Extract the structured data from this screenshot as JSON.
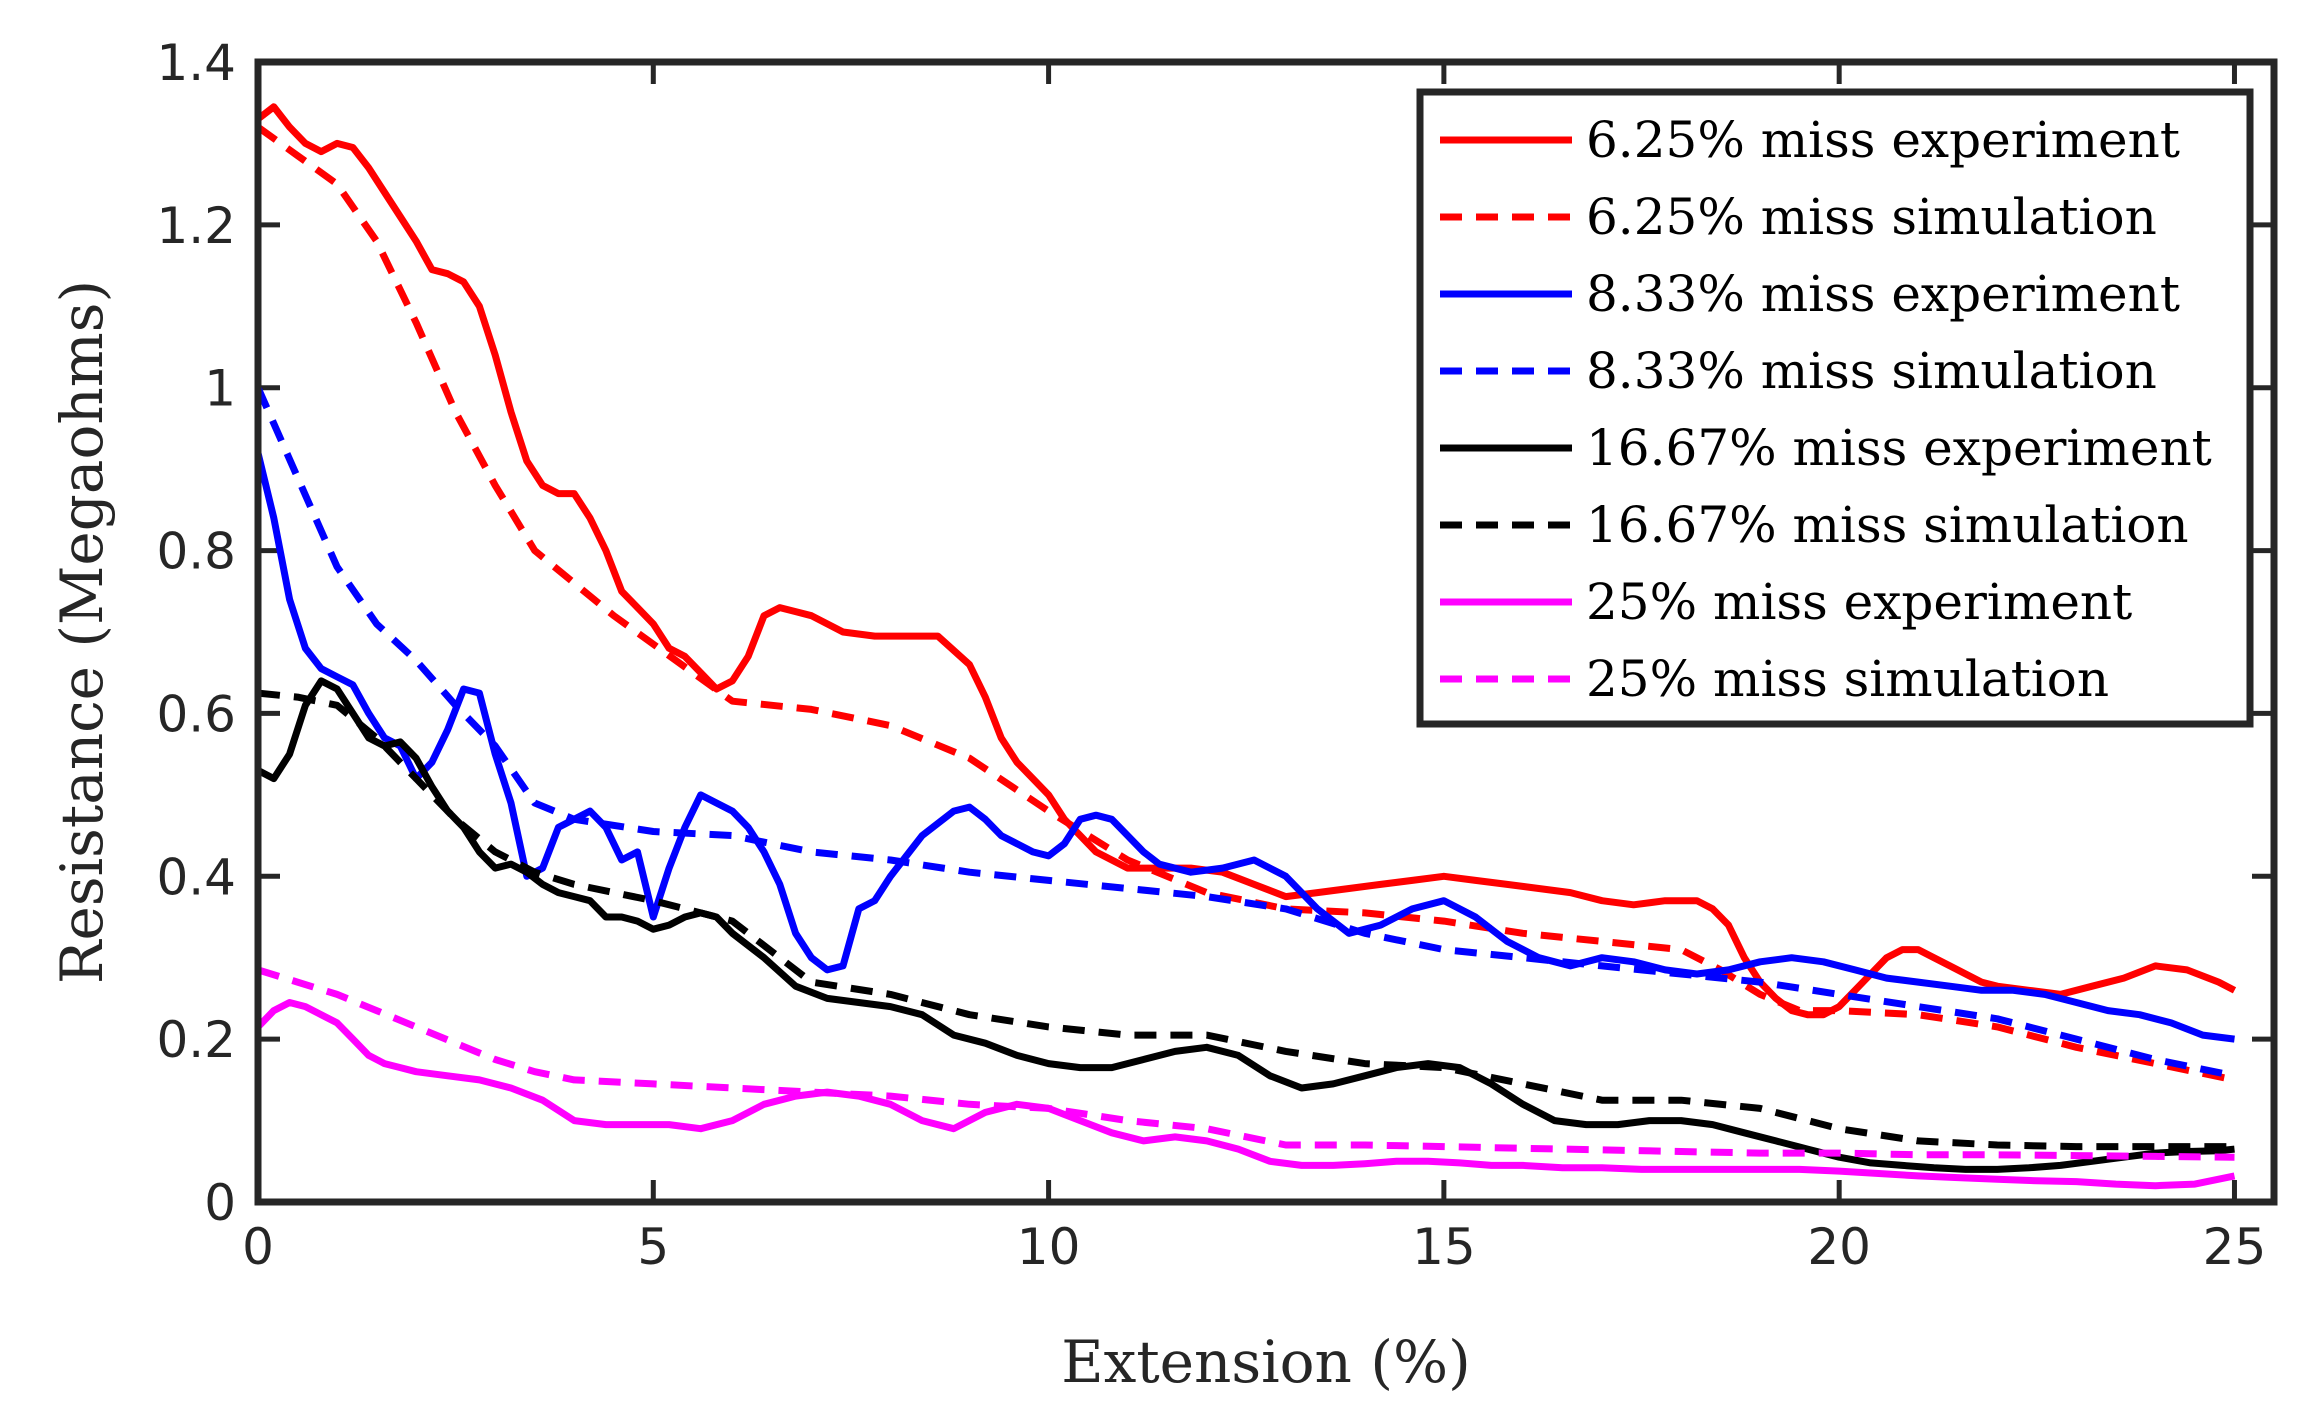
{
  "chart_data": {
    "type": "line",
    "title": "",
    "xlabel": "Extension (%)",
    "ylabel": "Resistance (Megaohms)",
    "xlim": [
      0,
      25.5
    ],
    "ylim": [
      0,
      1.4
    ],
    "xticks": [
      0,
      5,
      10,
      15,
      20,
      25
    ],
    "xtick_labels": [
      "0",
      "5",
      "10",
      "15",
      "20",
      "25"
    ],
    "yticks": [
      0,
      0.2,
      0.4,
      0.6,
      0.8,
      1.0,
      1.2,
      1.4
    ],
    "ytick_labels": [
      "0",
      "0.2",
      "0.4",
      "0.6",
      "0.8",
      "1",
      "1.2",
      "1.4"
    ],
    "grid": false,
    "legend_position": "top-right",
    "series": [
      {
        "name": "6.25% miss experiment",
        "color": "#ff0000",
        "style": "solid",
        "x": [
          0,
          0.2,
          0.4,
          0.6,
          0.8,
          1.0,
          1.2,
          1.4,
          1.6,
          1.8,
          2.0,
          2.2,
          2.4,
          2.6,
          2.8,
          3.0,
          3.2,
          3.4,
          3.6,
          3.8,
          4.0,
          4.2,
          4.4,
          4.6,
          4.8,
          5.0,
          5.2,
          5.4,
          5.6,
          5.8,
          6.0,
          6.2,
          6.4,
          6.6,
          6.8,
          7.0,
          7.4,
          7.8,
          8.2,
          8.6,
          9.0,
          9.2,
          9.4,
          9.6,
          9.8,
          10.0,
          10.2,
          10.4,
          10.6,
          10.8,
          11.0,
          11.4,
          11.8,
          12.2,
          12.6,
          13.0,
          13.4,
          13.8,
          14.2,
          14.6,
          15.0,
          15.4,
          15.8,
          16.2,
          16.6,
          17.0,
          17.4,
          17.8,
          18.2,
          18.4,
          18.6,
          18.8,
          19.0,
          19.2,
          19.4,
          19.6,
          19.8,
          20.0,
          20.2,
          20.4,
          20.6,
          20.8,
          21.0,
          21.2,
          21.4,
          21.6,
          21.8,
          22.0,
          22.4,
          22.8,
          23.2,
          23.6,
          24.0,
          24.4,
          24.8,
          25.0
        ],
        "y": [
          1.33,
          1.345,
          1.32,
          1.3,
          1.29,
          1.3,
          1.295,
          1.27,
          1.24,
          1.21,
          1.18,
          1.145,
          1.14,
          1.13,
          1.1,
          1.04,
          0.97,
          0.91,
          0.88,
          0.87,
          0.87,
          0.84,
          0.8,
          0.75,
          0.73,
          0.71,
          0.68,
          0.67,
          0.65,
          0.63,
          0.64,
          0.67,
          0.72,
          0.73,
          0.725,
          0.72,
          0.7,
          0.695,
          0.695,
          0.695,
          0.66,
          0.62,
          0.57,
          0.54,
          0.52,
          0.5,
          0.47,
          0.45,
          0.43,
          0.42,
          0.41,
          0.41,
          0.41,
          0.405,
          0.39,
          0.375,
          0.38,
          0.385,
          0.39,
          0.395,
          0.4,
          0.395,
          0.39,
          0.385,
          0.38,
          0.37,
          0.365,
          0.37,
          0.37,
          0.36,
          0.34,
          0.3,
          0.27,
          0.25,
          0.235,
          0.23,
          0.23,
          0.24,
          0.26,
          0.28,
          0.3,
          0.31,
          0.31,
          0.3,
          0.29,
          0.28,
          0.27,
          0.265,
          0.26,
          0.255,
          0.265,
          0.275,
          0.29,
          0.285,
          0.27,
          0.26
        ]
      },
      {
        "name": "6.25% miss simulation",
        "color": "#ff0000",
        "style": "dashed",
        "x": [
          0,
          0.5,
          1.0,
          1.5,
          2.0,
          2.5,
          3.0,
          3.5,
          4.0,
          4.5,
          5.0,
          5.5,
          6.0,
          7.0,
          8.0,
          9.0,
          10.0,
          11.0,
          12.0,
          13.0,
          14.0,
          15.0,
          16.0,
          17.0,
          18.0,
          18.5,
          19.0,
          19.5,
          20.0,
          21.0,
          22.0,
          23.0,
          24.0,
          25.0
        ],
        "y": [
          1.32,
          1.285,
          1.25,
          1.18,
          1.08,
          0.97,
          0.88,
          0.8,
          0.76,
          0.72,
          0.685,
          0.65,
          0.615,
          0.605,
          0.585,
          0.545,
          0.48,
          0.42,
          0.38,
          0.36,
          0.355,
          0.345,
          0.33,
          0.32,
          0.31,
          0.285,
          0.255,
          0.235,
          0.235,
          0.23,
          0.215,
          0.19,
          0.17,
          0.15
        ]
      },
      {
        "name": "8.33% miss experiment",
        "color": "#0000ff",
        "style": "solid",
        "x": [
          0,
          0.2,
          0.4,
          0.6,
          0.8,
          1.0,
          1.2,
          1.4,
          1.6,
          1.8,
          2.0,
          2.2,
          2.4,
          2.6,
          2.8,
          3.0,
          3.2,
          3.4,
          3.6,
          3.8,
          4.0,
          4.2,
          4.4,
          4.6,
          4.8,
          5.0,
          5.2,
          5.4,
          5.6,
          5.8,
          6.0,
          6.2,
          6.4,
          6.6,
          6.8,
          7.0,
          7.2,
          7.4,
          7.6,
          7.8,
          8.0,
          8.4,
          8.8,
          9.0,
          9.2,
          9.4,
          9.6,
          9.8,
          10.0,
          10.2,
          10.4,
          10.6,
          10.8,
          11.0,
          11.2,
          11.4,
          11.8,
          12.2,
          12.6,
          13.0,
          13.4,
          13.8,
          14.2,
          14.6,
          15.0,
          15.4,
          15.8,
          16.2,
          16.6,
          17.0,
          17.4,
          17.8,
          18.2,
          18.6,
          19.0,
          19.4,
          19.8,
          20.2,
          20.6,
          21.0,
          21.4,
          21.8,
          22.2,
          22.6,
          23.0,
          23.4,
          23.8,
          24.2,
          24.6,
          25.0
        ],
        "y": [
          0.92,
          0.84,
          0.74,
          0.68,
          0.655,
          0.645,
          0.635,
          0.6,
          0.57,
          0.56,
          0.52,
          0.54,
          0.58,
          0.63,
          0.625,
          0.55,
          0.49,
          0.4,
          0.41,
          0.46,
          0.47,
          0.48,
          0.46,
          0.42,
          0.43,
          0.35,
          0.41,
          0.46,
          0.5,
          0.49,
          0.48,
          0.46,
          0.43,
          0.39,
          0.33,
          0.3,
          0.285,
          0.29,
          0.36,
          0.37,
          0.4,
          0.45,
          0.48,
          0.485,
          0.47,
          0.45,
          0.44,
          0.43,
          0.425,
          0.44,
          0.47,
          0.475,
          0.47,
          0.45,
          0.43,
          0.415,
          0.405,
          0.41,
          0.42,
          0.4,
          0.36,
          0.33,
          0.34,
          0.36,
          0.37,
          0.35,
          0.32,
          0.3,
          0.29,
          0.3,
          0.295,
          0.285,
          0.28,
          0.285,
          0.295,
          0.3,
          0.295,
          0.285,
          0.275,
          0.27,
          0.265,
          0.26,
          0.26,
          0.255,
          0.245,
          0.235,
          0.23,
          0.22,
          0.205,
          0.2
        ]
      },
      {
        "name": "8.33% miss simulation",
        "color": "#0000ff",
        "style": "dashed",
        "x": [
          0,
          0.5,
          1.0,
          1.5,
          2.0,
          2.5,
          3.0,
          3.5,
          4.0,
          5.0,
          6.0,
          7.0,
          8.0,
          9.0,
          10.0,
          11.0,
          12.0,
          13.0,
          14.0,
          15.0,
          16.0,
          17.0,
          18.0,
          19.0,
          20.0,
          21.0,
          22.0,
          23.0,
          24.0,
          25.0
        ],
        "y": [
          1.0,
          0.89,
          0.78,
          0.71,
          0.665,
          0.61,
          0.56,
          0.49,
          0.47,
          0.455,
          0.45,
          0.43,
          0.42,
          0.405,
          0.395,
          0.385,
          0.375,
          0.36,
          0.33,
          0.31,
          0.3,
          0.29,
          0.28,
          0.27,
          0.255,
          0.24,
          0.225,
          0.2,
          0.175,
          0.155
        ]
      },
      {
        "name": "16.67% miss experiment",
        "color": "#000000",
        "style": "solid",
        "x": [
          0,
          0.2,
          0.4,
          0.6,
          0.8,
          1.0,
          1.2,
          1.4,
          1.6,
          1.8,
          2.0,
          2.2,
          2.4,
          2.6,
          2.8,
          3.0,
          3.2,
          3.4,
          3.6,
          3.8,
          4.0,
          4.2,
          4.4,
          4.6,
          4.8,
          5.0,
          5.2,
          5.4,
          5.6,
          5.8,
          6.0,
          6.4,
          6.8,
          7.2,
          7.6,
          8.0,
          8.4,
          8.8,
          9.2,
          9.6,
          10.0,
          10.4,
          10.8,
          11.2,
          11.6,
          12.0,
          12.4,
          12.8,
          13.2,
          13.6,
          14.0,
          14.4,
          14.8,
          15.2,
          15.6,
          16.0,
          16.4,
          16.8,
          17.2,
          17.6,
          18.0,
          18.4,
          18.8,
          19.2,
          19.6,
          20.0,
          20.4,
          20.8,
          21.2,
          21.6,
          22.0,
          22.4,
          22.8,
          23.2,
          23.6,
          24.0,
          24.4,
          24.8,
          25.0
        ],
        "y": [
          0.53,
          0.52,
          0.55,
          0.61,
          0.64,
          0.63,
          0.6,
          0.57,
          0.56,
          0.565,
          0.545,
          0.51,
          0.48,
          0.46,
          0.43,
          0.41,
          0.415,
          0.405,
          0.39,
          0.38,
          0.375,
          0.37,
          0.35,
          0.35,
          0.345,
          0.335,
          0.34,
          0.35,
          0.355,
          0.35,
          0.33,
          0.3,
          0.265,
          0.25,
          0.245,
          0.24,
          0.23,
          0.205,
          0.195,
          0.18,
          0.17,
          0.165,
          0.165,
          0.175,
          0.185,
          0.19,
          0.18,
          0.155,
          0.14,
          0.145,
          0.155,
          0.165,
          0.17,
          0.165,
          0.145,
          0.12,
          0.1,
          0.095,
          0.095,
          0.1,
          0.1,
          0.095,
          0.085,
          0.075,
          0.065,
          0.055,
          0.048,
          0.045,
          0.042,
          0.04,
          0.04,
          0.042,
          0.045,
          0.05,
          0.055,
          0.06,
          0.062,
          0.063,
          0.065
        ]
      },
      {
        "name": "16.67% miss simulation",
        "color": "#000000",
        "style": "dashed",
        "x": [
          0,
          0.5,
          1.0,
          1.5,
          2.0,
          2.5,
          3.0,
          3.5,
          4.0,
          5.0,
          6.0,
          7.0,
          8.0,
          9.0,
          10.0,
          11.0,
          12.0,
          13.0,
          14.0,
          15.0,
          16.0,
          17.0,
          18.0,
          19.0,
          20.0,
          21.0,
          22.0,
          23.0,
          24.0,
          25.0
        ],
        "y": [
          0.625,
          0.62,
          0.61,
          0.57,
          0.52,
          0.47,
          0.43,
          0.405,
          0.39,
          0.37,
          0.345,
          0.27,
          0.255,
          0.23,
          0.215,
          0.205,
          0.205,
          0.185,
          0.17,
          0.165,
          0.145,
          0.125,
          0.125,
          0.115,
          0.09,
          0.075,
          0.07,
          0.068,
          0.068,
          0.068
        ]
      },
      {
        "name": "25% miss experiment",
        "color": "#ff00ff",
        "style": "solid",
        "x": [
          0,
          0.2,
          0.4,
          0.6,
          0.8,
          1.0,
          1.2,
          1.4,
          1.6,
          1.8,
          2.0,
          2.4,
          2.8,
          3.2,
          3.6,
          4.0,
          4.4,
          4.8,
          5.2,
          5.6,
          6.0,
          6.4,
          6.8,
          7.2,
          7.6,
          8.0,
          8.4,
          8.8,
          9.2,
          9.6,
          10.0,
          10.4,
          10.8,
          11.2,
          11.6,
          12.0,
          12.4,
          12.8,
          13.2,
          13.6,
          14.0,
          14.4,
          14.8,
          15.2,
          15.6,
          16.0,
          16.5,
          17.0,
          17.5,
          18.0,
          18.5,
          19.0,
          19.5,
          20.0,
          20.5,
          21.0,
          21.5,
          22.0,
          22.5,
          23.0,
          23.5,
          24.0,
          24.5,
          25.0
        ],
        "y": [
          0.215,
          0.235,
          0.245,
          0.24,
          0.23,
          0.22,
          0.2,
          0.18,
          0.17,
          0.165,
          0.16,
          0.155,
          0.15,
          0.14,
          0.125,
          0.1,
          0.095,
          0.095,
          0.095,
          0.09,
          0.1,
          0.12,
          0.13,
          0.135,
          0.13,
          0.12,
          0.1,
          0.09,
          0.11,
          0.12,
          0.115,
          0.1,
          0.085,
          0.075,
          0.08,
          0.075,
          0.065,
          0.05,
          0.045,
          0.045,
          0.047,
          0.05,
          0.05,
          0.048,
          0.045,
          0.045,
          0.042,
          0.042,
          0.04,
          0.04,
          0.04,
          0.04,
          0.04,
          0.038,
          0.035,
          0.032,
          0.03,
          0.028,
          0.026,
          0.025,
          0.022,
          0.02,
          0.022,
          0.032
        ]
      },
      {
        "name": "25% miss simulation",
        "color": "#ff00ff",
        "style": "dashed",
        "x": [
          0,
          0.5,
          1.0,
          1.5,
          2.0,
          2.5,
          3.0,
          3.5,
          4.0,
          5.0,
          6.0,
          7.0,
          8.0,
          9.0,
          10.0,
          11.0,
          12.0,
          13.0,
          14.0,
          15.0,
          16.0,
          17.0,
          18.0,
          19.0,
          20.0,
          21.0,
          22.0,
          23.0,
          24.0,
          25.0
        ],
        "y": [
          0.285,
          0.27,
          0.255,
          0.235,
          0.215,
          0.195,
          0.175,
          0.16,
          0.15,
          0.145,
          0.14,
          0.135,
          0.13,
          0.12,
          0.115,
          0.1,
          0.09,
          0.07,
          0.07,
          0.068,
          0.066,
          0.064,
          0.062,
          0.06,
          0.06,
          0.058,
          0.058,
          0.057,
          0.056,
          0.055
        ]
      }
    ]
  }
}
